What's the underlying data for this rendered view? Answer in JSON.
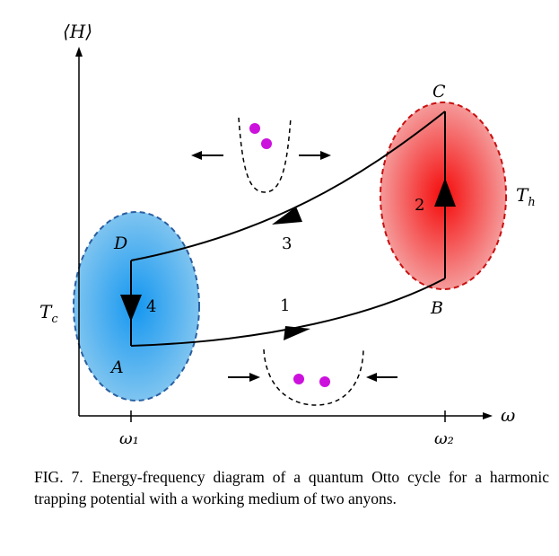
{
  "labels": {
    "y_axis": "⟨H⟩",
    "x_axis": "ω",
    "omega1": "ω₁",
    "omega2": "ω₂",
    "Tc": "T",
    "Tc_sub": "c",
    "Th": "T",
    "Th_sub": "h",
    "A": "A",
    "B": "B",
    "C": "C",
    "D": "D",
    "stroke1": "1",
    "stroke2": "2",
    "stroke3": "3",
    "stroke4": "4"
  },
  "colors": {
    "cold": "#2f9ee9",
    "hot": "#f01a1a",
    "particle": "#cc11dd",
    "cold_border": "#2a5fa0",
    "hot_border": "#c81010"
  },
  "caption": {
    "label": "FIG. 7.",
    "text": "Energy-frequency diagram of a quantum Otto cycle for a harmonic trapping potential with a working medium of two anyons."
  }
}
